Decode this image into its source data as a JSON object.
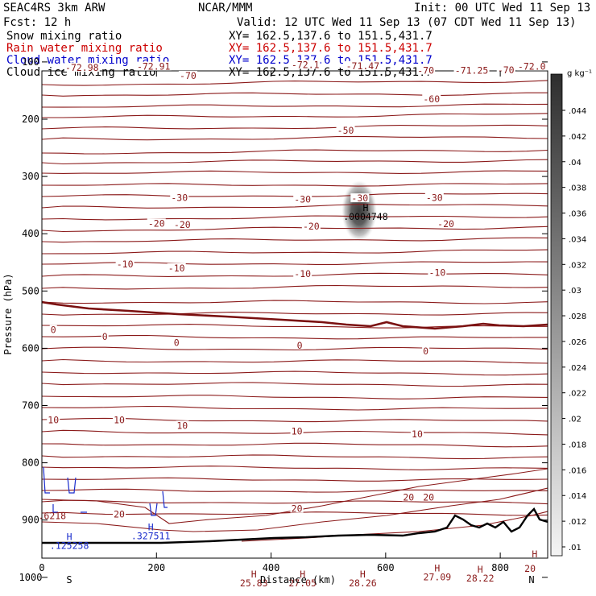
{
  "header": {
    "line1_left": "SEAC4RS  3km ARW",
    "line1_mid": "NCAR/MMM",
    "line1_right": "Init: 00 UTC Wed 11 Sep 13",
    "line2_left": "Fcst:   12 h",
    "line2_right": "Valid: 12 UTC Wed 11 Sep 13 (07 CDT Wed 11 Sep 13)"
  },
  "fields": [
    {
      "name": "Snow mixing ratio",
      "xy": "XY= 162.5,137.6 to 151.5,431.7",
      "color": "#000000"
    },
    {
      "name": "Rain water mixing ratio",
      "xy": "XY= 162.5,137.6 to 151.5,431.7",
      "color": "#cc0000"
    },
    {
      "name": "Cloud water mixing ratio",
      "xy": "XY= 162.5,137.6 to 151.5,431.7",
      "color": "#0000cc"
    },
    {
      "name": "Cloud ice mixing ratio",
      "xy": "XY= 162.5,137.6 to 151.5,431.7",
      "color": "#000000"
    }
  ],
  "colors": {
    "contour": "#8b1a1a",
    "freezing": "#7a1010",
    "cloud_water": "#1a2ccc",
    "terrain": "#000000"
  },
  "chart_data": {
    "type": "contour cross-section",
    "xlabel": "Distance (km)",
    "ylabel": "Pressure (hPa)",
    "xlim": [
      0,
      880
    ],
    "ylim": [
      1045,
      100
    ],
    "x_ticks": [
      0,
      200,
      400,
      600,
      800
    ],
    "y_ticks": [
      100,
      200,
      300,
      400,
      500,
      600,
      700,
      800,
      900,
      1000
    ],
    "x_end_labels": {
      "left": "S",
      "right": "N"
    },
    "colorbar": {
      "units": "g kg⁻¹",
      "ticks": [
        ".01",
        ".012",
        ".014",
        ".016",
        ".018",
        ".02",
        ".022",
        ".024",
        ".026",
        ".028",
        ".03",
        ".032",
        ".034",
        ".036",
        ".038",
        ".04",
        ".042",
        ".044"
      ]
    },
    "contour_labels": [
      {
        "text": "-72.98",
        "x": 70,
        "p": 110
      },
      {
        "text": "-72.91",
        "x": 195,
        "p": 108
      },
      {
        "text": "-70",
        "x": 255,
        "p": 124
      },
      {
        "text": "-72.1",
        "x": 460,
        "p": 105
      },
      {
        "text": "-71.47",
        "x": 560,
        "p": 107
      },
      {
        "text": "-70",
        "x": 670,
        "p": 115
      },
      {
        "text": "-71.25",
        "x": 750,
        "p": 115
      },
      {
        "text": "-70",
        "x": 810,
        "p": 114
      },
      {
        "text": "-72.0",
        "x": 855,
        "p": 108
      },
      {
        "text": "-60",
        "x": 680,
        "p": 165
      },
      {
        "text": "-50",
        "x": 530,
        "p": 220
      },
      {
        "text": "-30",
        "x": 240,
        "p": 337
      },
      {
        "text": "-30",
        "x": 455,
        "p": 340
      },
      {
        "text": "-30",
        "x": 555,
        "p": 338
      },
      {
        "text": "-30",
        "x": 685,
        "p": 337
      },
      {
        "text": "-20",
        "x": 200,
        "p": 382
      },
      {
        "text": "-20",
        "x": 245,
        "p": 384
      },
      {
        "text": "-20",
        "x": 470,
        "p": 387
      },
      {
        "text": "-20",
        "x": 705,
        "p": 383
      },
      {
        "text": "-10",
        "x": 145,
        "p": 453
      },
      {
        "text": "-10",
        "x": 235,
        "p": 460
      },
      {
        "text": "-10",
        "x": 455,
        "p": 470
      },
      {
        "text": "-10",
        "x": 690,
        "p": 468
      },
      {
        "text": "0",
        "x": 20,
        "p": 568
      },
      {
        "text": "0",
        "x": 110,
        "p": 580
      },
      {
        "text": "0",
        "x": 235,
        "p": 590
      },
      {
        "text": "0",
        "x": 450,
        "p": 595
      },
      {
        "text": "0",
        "x": 670,
        "p": 605
      },
      {
        "text": "10",
        "x": 20,
        "p": 725
      },
      {
        "text": "10",
        "x": 135,
        "p": 725
      },
      {
        "text": "10",
        "x": 245,
        "p": 735
      },
      {
        "text": "10",
        "x": 445,
        "p": 745
      },
      {
        "text": "10",
        "x": 655,
        "p": 750
      },
      {
        "text": "20",
        "x": 135,
        "p": 890
      },
      {
        "text": "20",
        "x": 445,
        "p": 880
      },
      {
        "text": "20",
        "x": 640,
        "p": 860
      },
      {
        "text": "20",
        "x": 675,
        "p": 860
      },
      {
        "text": "20",
        "x": 852,
        "p": 985
      }
    ],
    "highs": [
      {
        "label": "H",
        "value": ".0004748",
        "x": 565,
        "p": 360
      },
      {
        "label": "H",
        "value": "25.83",
        "x": 370,
        "p": 1000
      },
      {
        "label": "H",
        "value": "27.05",
        "x": 455,
        "p": 1000
      },
      {
        "label": "H",
        "value": "28.26",
        "x": 560,
        "p": 1000
      },
      {
        "label": "H",
        "value": "27.09",
        "x": 690,
        "p": 990
      },
      {
        "label": "H",
        "value": "28.22",
        "x": 765,
        "p": 992
      },
      {
        "label": "H",
        "value": "",
        "x": 860,
        "p": 965
      }
    ],
    "cloud_water_labels": [
      {
        "label": "",
        "value": ".6218",
        "x": 18,
        "p": 898
      },
      {
        "label": "H",
        "value": ".125258",
        "x": 48,
        "p": 935
      },
      {
        "label": "H",
        "value": ".327511",
        "x": 190,
        "p": 918
      }
    ]
  }
}
